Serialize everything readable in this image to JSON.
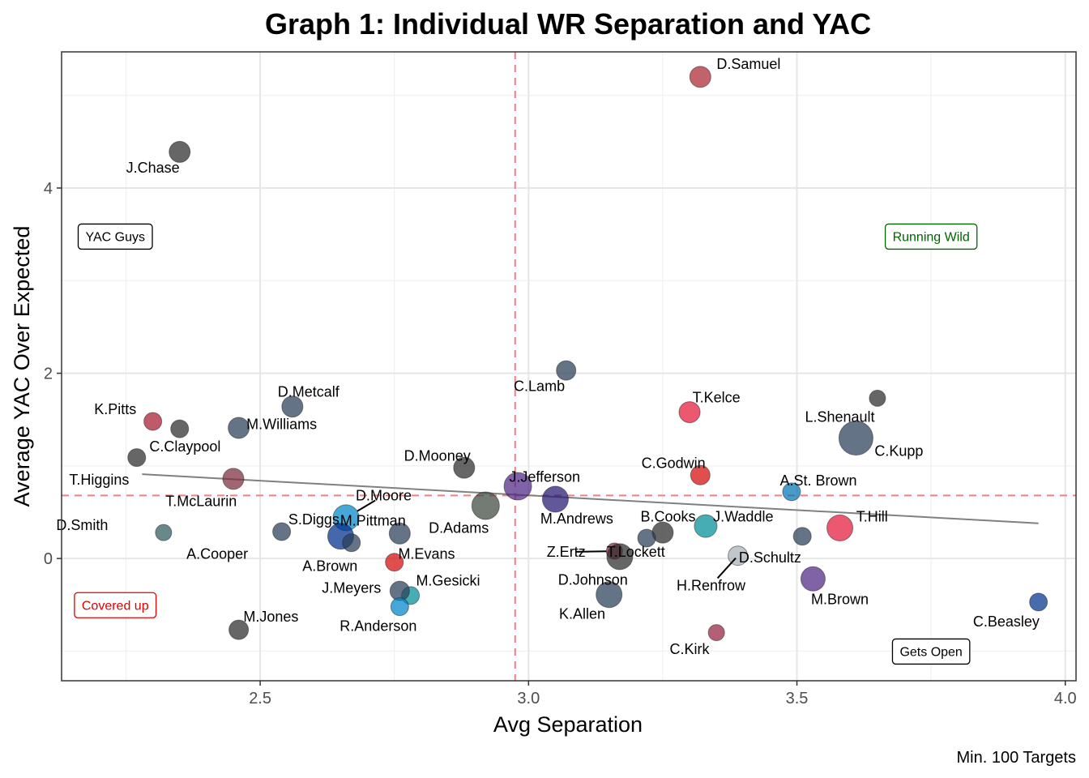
{
  "chart_data": {
    "type": "scatter",
    "title": "Graph 1: Individual WR Separation and YAC",
    "xlabel": "Avg Separation",
    "ylabel": "Average YAC Over Expected",
    "caption": "Min. 100 Targets",
    "xlim": [
      2.13,
      4.02
    ],
    "ylim": [
      -1.32,
      5.47
    ],
    "x_ticks": [
      2.5,
      3.0,
      3.5,
      4.0
    ],
    "x_tick_labels": [
      "2.5",
      "3.0",
      "3.5",
      "4.0"
    ],
    "y_ticks": [
      0,
      2,
      4
    ],
    "y_tick_labels": [
      "0",
      "2",
      "4"
    ],
    "grid": true,
    "reference_lines": {
      "x": 2.975,
      "y": 0.68,
      "color": "#F08080"
    },
    "trend_line": {
      "x": [
        2.28,
        3.95
      ],
      "y": [
        0.91,
        0.38
      ],
      "color": "#808080"
    },
    "quadrant_labels": [
      {
        "text": "YAC Guys",
        "x": 2.23,
        "y": 3.48,
        "color": "#000000"
      },
      {
        "text": "Running Wild",
        "x": 3.75,
        "y": 3.48,
        "color": "#006400"
      },
      {
        "text": "Covered up",
        "x": 2.23,
        "y": -0.5,
        "color": "#E00000"
      },
      {
        "text": "Gets Open",
        "x": 3.75,
        "y": -1.0,
        "color": "#000000"
      }
    ],
    "points": [
      {
        "name": "D.Samuel",
        "x": 3.32,
        "y": 5.2,
        "r": 13,
        "color": "#AA2733",
        "label": "D.Samuel",
        "lx": 3.41,
        "ly": 5.34,
        "lanchor": "middle"
      },
      {
        "name": "J.Chase",
        "x": 2.35,
        "y": 4.39,
        "r": 13,
        "color": "#2B2B2B",
        "label": "J.Chase",
        "lx": 2.3,
        "ly": 4.22,
        "lanchor": "middle"
      },
      {
        "name": "C.Lamb",
        "x": 3.07,
        "y": 2.03,
        "r": 12,
        "color": "#2A3D58",
        "label": "C.Lamb",
        "lx": 3.02,
        "ly": 1.86,
        "lanchor": "middle"
      },
      {
        "name": "T.Kelce",
        "x": 3.3,
        "y": 1.58,
        "r": 13,
        "color": "#E31837",
        "label": "T.Kelce",
        "lx": 3.35,
        "ly": 1.74,
        "lanchor": "middle"
      },
      {
        "name": "L.Shenault",
        "x": 3.65,
        "y": 1.73,
        "r": 10,
        "color": "#2B2B2B",
        "label": "L.Shenault",
        "lx": 3.58,
        "ly": 1.53,
        "lanchor": "middle"
      },
      {
        "name": "C.Kupp",
        "x": 3.61,
        "y": 1.3,
        "r": 21,
        "color": "#2A3D58",
        "label": "C.Kupp",
        "lx": 3.69,
        "ly": 1.16,
        "lanchor": "middle"
      },
      {
        "name": "D.Metcalf",
        "x": 2.56,
        "y": 1.64,
        "r": 13,
        "color": "#2A3D58",
        "label": "D.Metcalf",
        "lx": 2.59,
        "ly": 1.8,
        "lanchor": "middle"
      },
      {
        "name": "K.Pitts",
        "x": 2.3,
        "y": 1.48,
        "r": 11,
        "color": "#A71930",
        "label": "K.Pitts",
        "lx": 2.23,
        "ly": 1.61,
        "lanchor": "middle"
      },
      {
        "name": "M.Williams",
        "x": 2.46,
        "y": 1.41,
        "r": 13,
        "color": "#2A3D58",
        "label": "M.Williams",
        "lx": 2.54,
        "ly": 1.45,
        "lanchor": "middle"
      },
      {
        "name": "",
        "x": 2.35,
        "y": 1.4,
        "r": 11,
        "color": "#2B2B2B",
        "label": "",
        "lx": 0,
        "ly": 0,
        "lanchor": "middle"
      },
      {
        "name": "C.Claypool",
        "x": 2.27,
        "y": 1.09,
        "r": 11,
        "color": "#2B2B2B",
        "label": "C.Claypool",
        "lx": 2.36,
        "ly": 1.21,
        "lanchor": "middle"
      },
      {
        "name": "D.Mooney",
        "x": 2.88,
        "y": 0.98,
        "r": 13,
        "color": "#2B2B2B",
        "label": "D.Mooney",
        "lx": 2.83,
        "ly": 1.11,
        "lanchor": "middle"
      },
      {
        "name": "C.Godwin",
        "x": 3.32,
        "y": 0.9,
        "r": 12,
        "color": "#D50A0A",
        "label": "C.Godwin",
        "lx": 3.27,
        "ly": 1.03,
        "lanchor": "middle"
      },
      {
        "name": "T.Higgins",
        "x": 2.45,
        "y": 0.86,
        "r": 13,
        "color": "#7B2D3C",
        "label": "T.Higgins",
        "lx": 2.2,
        "ly": 0.85,
        "lanchor": "middle"
      },
      {
        "name": "T.McLaurin",
        "x": 2.45,
        "y": 0.86,
        "r": 0,
        "color": "#7B2D3C",
        "label": "T.McLaurin",
        "lx": 2.39,
        "ly": 0.62,
        "lanchor": "middle"
      },
      {
        "name": "J.Jefferson",
        "x": 2.98,
        "y": 0.78,
        "r": 17,
        "color": "#4F2683",
        "label": "J.Jefferson",
        "lx": 3.03,
        "ly": 0.88,
        "lanchor": "middle"
      },
      {
        "name": "M.Andrews",
        "x": 3.05,
        "y": 0.64,
        "r": 16,
        "color": "#241773",
        "label": "M.Andrews",
        "lx": 3.09,
        "ly": 0.43,
        "lanchor": "middle"
      },
      {
        "name": "D.Adams",
        "x": 2.92,
        "y": 0.57,
        "r": 17,
        "color": "#3C4A3E",
        "label": "D.Adams",
        "lx": 2.87,
        "ly": 0.33,
        "lanchor": "middle"
      },
      {
        "name": "A.St. Brown",
        "x": 3.49,
        "y": 0.72,
        "r": 11,
        "color": "#0076B6",
        "label": "A.St. Brown",
        "lx": 3.54,
        "ly": 0.84,
        "lanchor": "middle"
      },
      {
        "name": "B.Cooks",
        "x": 3.25,
        "y": 0.28,
        "r": 13,
        "color": "#2B2B2B",
        "label": "B.Cooks",
        "lx": 3.26,
        "ly": 0.45,
        "lanchor": "middle"
      },
      {
        "name": "",
        "x": 3.22,
        "y": 0.22,
        "r": 11,
        "color": "#2A3D58",
        "label": "",
        "lx": 0,
        "ly": 0,
        "lanchor": "middle"
      },
      {
        "name": "J.Waddle",
        "x": 3.33,
        "y": 0.35,
        "r": 14,
        "color": "#008E97",
        "label": "J.Waddle",
        "lx": 3.4,
        "ly": 0.45,
        "lanchor": "middle"
      },
      {
        "name": "T.Hill",
        "x": 3.58,
        "y": 0.33,
        "r": 16,
        "color": "#E31837",
        "label": "T.Hill",
        "lx": 3.64,
        "ly": 0.45,
        "lanchor": "middle"
      },
      {
        "name": "",
        "x": 3.51,
        "y": 0.24,
        "r": 11,
        "color": "#2A3D58",
        "label": "",
        "lx": 0,
        "ly": 0,
        "lanchor": "middle"
      },
      {
        "name": "D.Moore",
        "x": 2.66,
        "y": 0.44,
        "r": 16,
        "color": "#0085CA",
        "label": "D.Moore",
        "lx": 2.73,
        "ly": 0.68,
        "lanchor": "middle",
        "leader": true
      },
      {
        "name": "A.Brown",
        "x": 2.65,
        "y": 0.24,
        "r": 16,
        "color": "#002C8C",
        "label": "A.Brown",
        "lx": 2.63,
        "ly": -0.08,
        "lanchor": "middle"
      },
      {
        "name": "",
        "x": 2.67,
        "y": 0.17,
        "r": 11,
        "color": "#2A3D58",
        "label": "",
        "lx": 0,
        "ly": 0,
        "lanchor": "middle"
      },
      {
        "name": "M.Pittman",
        "x": 2.76,
        "y": 0.27,
        "r": 13,
        "color": "#2A3D58",
        "label": "M.Pittman",
        "lx": 2.71,
        "ly": 0.41,
        "lanchor": "middle"
      },
      {
        "name": "S.Diggs",
        "x": 2.54,
        "y": 0.29,
        "r": 11,
        "color": "#2A3D58",
        "label": "S.Diggs",
        "lx": 2.6,
        "ly": 0.42,
        "lanchor": "middle"
      },
      {
        "name": "D.Smith",
        "x": 2.32,
        "y": 0.28,
        "r": 10,
        "color": "#2E5A5E",
        "label": "D.Smith",
        "lx": 2.12,
        "ly": 0.36,
        "lanchor": "start"
      },
      {
        "name": "A.Cooper",
        "x": 2.54,
        "y": 0.29,
        "r": 0,
        "color": "#2A3D58",
        "label": "A.Cooper",
        "lx": 2.42,
        "ly": 0.05,
        "lanchor": "middle"
      },
      {
        "name": "M.Evans",
        "x": 2.75,
        "y": -0.04,
        "r": 11,
        "color": "#D50A0A",
        "label": "M.Evans",
        "lx": 2.81,
        "ly": 0.05,
        "lanchor": "middle"
      },
      {
        "name": "Z.Ertz",
        "x": 3.16,
        "y": 0.08,
        "r": 10,
        "color": "#97233F",
        "label": "Z.Ertz",
        "lx": 3.07,
        "ly": 0.07,
        "lanchor": "middle",
        "leader": true
      },
      {
        "name": "T.Lockett",
        "x": 3.17,
        "y": 0.02,
        "r": 16,
        "color": "#2B2B2B",
        "label": "T.Lockett",
        "lx": 3.2,
        "ly": 0.07,
        "lanchor": "middle"
      },
      {
        "name": "D.Schultz",
        "x": 3.39,
        "y": 0.03,
        "r": 12,
        "color": "#A8B0B8",
        "label": "D.Schultz",
        "lx": 3.45,
        "ly": 0.01,
        "lanchor": "middle"
      },
      {
        "name": "H.Renfrow",
        "x": 3.39,
        "y": 0.03,
        "r": 0,
        "color": "#A8B0B8",
        "label": "H.Renfrow",
        "lx": 3.34,
        "ly": -0.29,
        "lanchor": "middle",
        "leader": true
      },
      {
        "name": "D.Johnson",
        "x": 3.17,
        "y": 0.02,
        "r": 0,
        "color": "#2B2B2B",
        "label": "D.Johnson",
        "lx": 3.12,
        "ly": -0.23,
        "lanchor": "middle"
      },
      {
        "name": "M.Brown",
        "x": 3.53,
        "y": -0.22,
        "r": 15,
        "color": "#4F2683",
        "label": "M.Brown",
        "lx": 3.58,
        "ly": -0.44,
        "lanchor": "middle"
      },
      {
        "name": "M.Gesicki",
        "x": 2.78,
        "y": -0.4,
        "r": 11,
        "color": "#008E97",
        "label": "M.Gesicki",
        "lx": 2.85,
        "ly": -0.24,
        "lanchor": "middle"
      },
      {
        "name": "J.Meyers",
        "x": 2.76,
        "y": -0.35,
        "r": 12,
        "color": "#2A3D58",
        "label": "J.Meyers",
        "lx": 2.67,
        "ly": -0.32,
        "lanchor": "middle"
      },
      {
        "name": "R.Anderson",
        "x": 2.76,
        "y": -0.52,
        "r": 11,
        "color": "#0085CA",
        "label": "R.Anderson",
        "lx": 2.72,
        "ly": -0.73,
        "lanchor": "middle"
      },
      {
        "name": "K.Allen",
        "x": 3.15,
        "y": -0.39,
        "r": 16,
        "color": "#2A3D58",
        "label": "K.Allen",
        "lx": 3.1,
        "ly": -0.6,
        "lanchor": "middle"
      },
      {
        "name": "M.Jones",
        "x": 2.46,
        "y": -0.77,
        "r": 12,
        "color": "#2B2B2B",
        "label": "M.Jones",
        "lx": 2.52,
        "ly": -0.63,
        "lanchor": "middle"
      },
      {
        "name": "C.Kirk",
        "x": 3.35,
        "y": -0.8,
        "r": 10,
        "color": "#97233F",
        "label": "C.Kirk",
        "lx": 3.3,
        "ly": -0.98,
        "lanchor": "middle"
      },
      {
        "name": "C.Beasley",
        "x": 3.95,
        "y": -0.47,
        "r": 11,
        "color": "#00338D",
        "label": "C.Beasley",
        "lx": 3.89,
        "ly": -0.68,
        "lanchor": "middle"
      }
    ]
  }
}
